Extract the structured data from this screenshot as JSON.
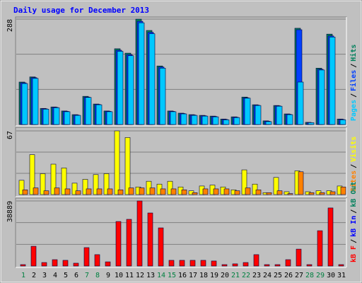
{
  "title": "Daily usage for December 2013",
  "legend_separator": "/",
  "chart_data": [
    {
      "type": "bar",
      "ylim": [
        0,
        288
      ],
      "yticks": [
        288
      ],
      "grid_divisions": 3,
      "series": [
        {
          "name": "Hits",
          "color": "#00805C",
          "values": [
            116,
            130,
            44,
            48,
            37,
            27,
            77,
            56,
            37,
            207,
            195,
            288,
            257,
            160,
            37,
            31,
            27,
            25,
            23,
            15,
            21,
            75,
            54,
            10,
            52,
            29,
            263,
            6,
            154,
            247,
            15
          ]
        },
        {
          "name": "Files",
          "color": "#0040FF",
          "values": [
            114,
            128,
            43,
            47,
            36,
            26,
            75,
            55,
            36,
            203,
            191,
            282,
            252,
            157,
            36,
            30,
            26,
            24,
            22,
            14,
            20,
            73,
            53,
            9,
            51,
            28,
            259,
            5,
            151,
            242,
            14
          ]
        },
        {
          "name": "Pages",
          "color": "#00C8FF",
          "values": [
            112,
            126,
            42,
            46,
            35,
            25,
            74,
            54,
            35,
            200,
            188,
            278,
            248,
            154,
            35,
            29,
            25,
            23,
            21,
            13,
            19,
            72,
            52,
            8,
            50,
            27,
            116,
            5,
            149,
            239,
            13
          ]
        }
      ]
    },
    {
      "type": "bar",
      "ylim": [
        0,
        67
      ],
      "yticks": [
        67
      ],
      "grid_divisions": 3,
      "series": [
        {
          "name": "Visits",
          "color": "#FFFF00",
          "values": [
            15,
            42,
            22,
            32,
            28,
            12,
            16,
            21,
            22,
            67,
            60,
            8,
            14,
            11,
            14,
            8,
            4,
            9,
            10,
            8,
            5,
            26,
            11,
            2,
            18,
            3,
            25,
            3,
            4,
            4,
            9
          ]
        },
        {
          "name": "Sites",
          "color": "#FF8000",
          "values": [
            5,
            7,
            4,
            7,
            6,
            4,
            6,
            6,
            6,
            5,
            7,
            7,
            7,
            6,
            6,
            5,
            2,
            6,
            6,
            6,
            4,
            7,
            5,
            2,
            4,
            1,
            24,
            2,
            2,
            3,
            8
          ]
        }
      ]
    },
    {
      "type": "bar",
      "ylim": [
        0,
        38889
      ],
      "yticks": [
        38889
      ],
      "grid_divisions": 3,
      "x": [
        "1",
        "2",
        "3",
        "4",
        "5",
        "6",
        "7",
        "8",
        "9",
        "10",
        "11",
        "12",
        "13",
        "14",
        "15",
        "16",
        "17",
        "18",
        "19",
        "20",
        "21",
        "22",
        "23",
        "24",
        "25",
        "26",
        "27",
        "28",
        "29",
        "30",
        "31"
      ],
      "x_colors": [
        "#008040",
        "#000000",
        "#000000",
        "#000000",
        "#000000",
        "#000000",
        "#008040",
        "#008040",
        "#000000",
        "#000000",
        "#000000",
        "#000000",
        "#000000",
        "#008040",
        "#008040",
        "#000000",
        "#000000",
        "#000000",
        "#000000",
        "#000000",
        "#008040",
        "#008040",
        "#000000",
        "#000000",
        "#000000",
        "#000000",
        "#000000",
        "#008040",
        "#008040",
        "#000000",
        "#000000"
      ],
      "series": [
        {
          "name": "kB F",
          "color": "#FF0000",
          "values": [
            850,
            11800,
            2100,
            3800,
            3400,
            1700,
            11000,
            6800,
            2500,
            26600,
            27900,
            38889,
            31700,
            22800,
            3400,
            3400,
            3400,
            3400,
            3000,
            850,
            1300,
            2100,
            6800,
            850,
            850,
            3800,
            10100,
            850,
            21100,
            34700,
            850
          ]
        }
      ],
      "extra_legend": [
        {
          "name": "kB In",
          "color": "#0000FF"
        },
        {
          "name": "kB Out",
          "color": "#00805C"
        }
      ]
    }
  ]
}
